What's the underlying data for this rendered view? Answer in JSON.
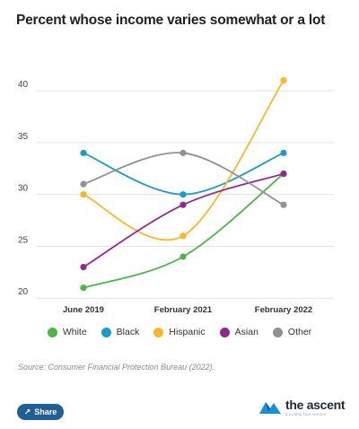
{
  "title": "Percent whose income varies somewhat or a lot",
  "source": "Source: Consumer Financial Protection Bureau (2022).",
  "share_label": "Share",
  "brand": {
    "name": "the ascent",
    "tagline": "a motley fool service"
  },
  "chart_data": {
    "type": "line",
    "categories": [
      "June 2019",
      "February 2021",
      "February 2022"
    ],
    "series": [
      {
        "name": "White",
        "color": "#4cb648",
        "values": [
          21,
          24,
          32
        ]
      },
      {
        "name": "Black",
        "color": "#1a9bcc",
        "values": [
          34,
          30,
          34
        ]
      },
      {
        "name": "Hispanic",
        "color": "#f6b828",
        "values": [
          30,
          26,
          41
        ]
      },
      {
        "name": "Asian",
        "color": "#8e2a8f",
        "values": [
          23,
          29,
          32
        ]
      },
      {
        "name": "Other",
        "color": "#919191",
        "values": [
          31,
          34,
          29
        ]
      }
    ],
    "yticks": [
      20,
      25,
      30,
      35,
      40
    ],
    "ylim": [
      19.5,
      42
    ],
    "grid": true,
    "legend": "bottom",
    "xlabel": "",
    "ylabel": ""
  }
}
